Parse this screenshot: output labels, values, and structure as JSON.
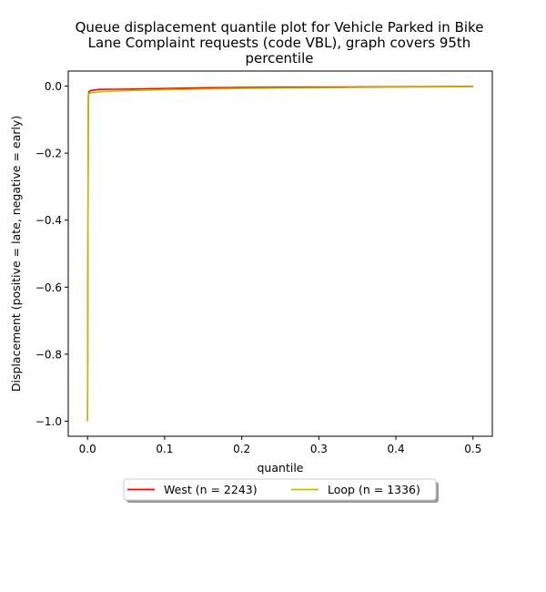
{
  "chart_data": {
    "type": "line",
    "title": [
      "Queue displacement quantile plot for Vehicle Parked in Bike",
      "Lane Complaint  requests (code VBL), graph covers 95th",
      "percentile"
    ],
    "xlabel": "quantile",
    "ylabel": "Displacement (positive = late, negative = early)",
    "xlim": [
      -0.025,
      0.525
    ],
    "ylim": [
      -1.045,
      0.045
    ],
    "x_ticks": [
      0.0,
      0.1,
      0.2,
      0.3,
      0.4,
      0.5
    ],
    "x_tick_labels": [
      "0.0",
      "0.1",
      "0.2",
      "0.3",
      "0.4",
      "0.5"
    ],
    "y_ticks": [
      0.0,
      -0.2,
      -0.4,
      -0.6,
      -0.8,
      -1.0
    ],
    "y_tick_labels": [
      "0.0",
      "−0.2",
      "−0.4",
      "−0.6",
      "−0.8",
      "−1.0"
    ],
    "grid": false,
    "legend_placement": "below-center",
    "series": [
      {
        "name": "West (n = 2243)",
        "color": "#ff0000",
        "x": [
          0.0,
          0.0005,
          0.001,
          0.002,
          0.005,
          0.015,
          0.05,
          0.1,
          0.15,
          0.2,
          0.3,
          0.4,
          0.5
        ],
        "y": [
          -1.0,
          -0.5,
          -0.03,
          -0.016,
          -0.013,
          -0.01,
          -0.009,
          -0.007,
          -0.005,
          -0.004,
          -0.003,
          -0.002,
          -0.001
        ]
      },
      {
        "name": "Loop (n = 1336)",
        "color": "#bfbf00",
        "x": [
          0.0,
          0.0005,
          0.001,
          0.002,
          0.005,
          0.02,
          0.06,
          0.1,
          0.15,
          0.2,
          0.3,
          0.4,
          0.5
        ],
        "y": [
          -1.0,
          -0.5,
          -0.03,
          -0.022,
          -0.02,
          -0.016,
          -0.013,
          -0.011,
          -0.009,
          -0.007,
          -0.005,
          -0.003,
          -0.002
        ]
      }
    ]
  }
}
